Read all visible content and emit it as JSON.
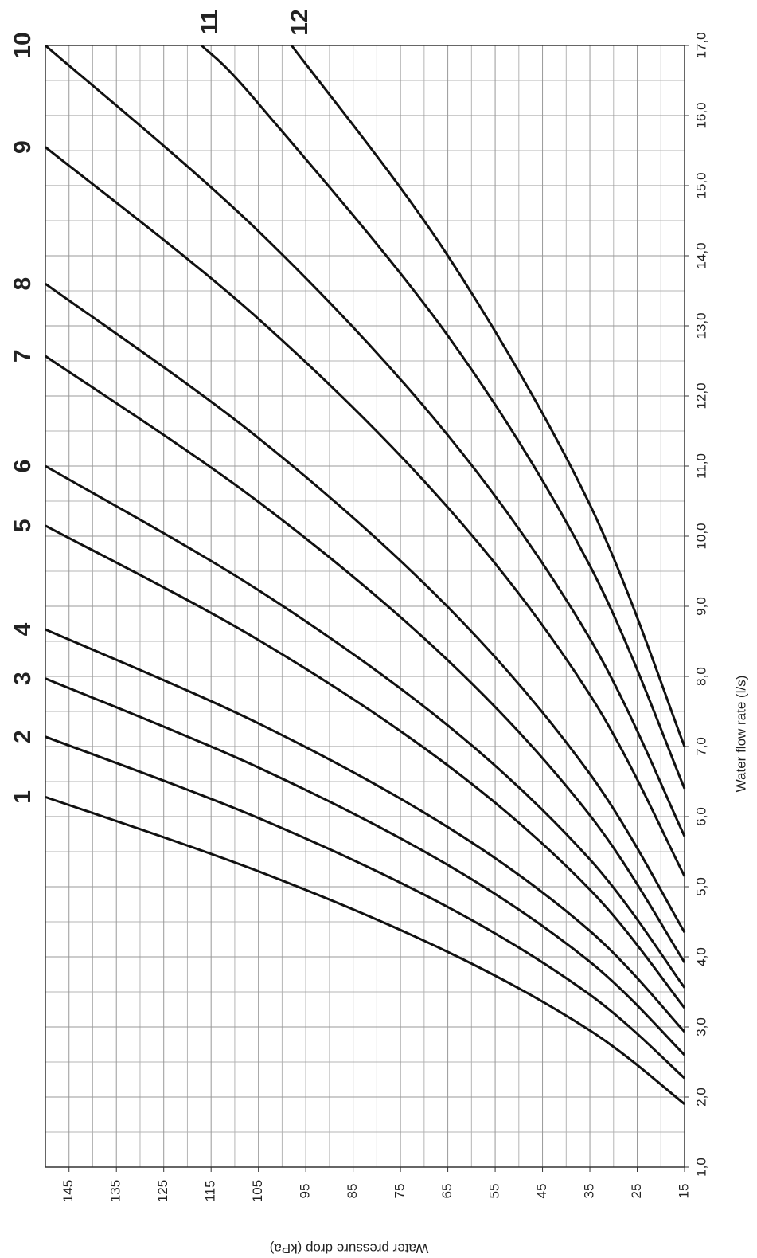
{
  "chart_data": {
    "type": "line",
    "x_label": "Water flow rate (l/s)",
    "y_label": "Water pressure drop (kPa)",
    "xlim": [
      1,
      17
    ],
    "xticks": [
      {
        "value": 1,
        "label": "1,0"
      },
      {
        "value": 2,
        "label": "2,0"
      },
      {
        "value": 3,
        "label": "3,0"
      },
      {
        "value": 4,
        "label": "4,0"
      },
      {
        "value": 5,
        "label": "5,0"
      },
      {
        "value": 6,
        "label": "6,0"
      },
      {
        "value": 7,
        "label": "7,0"
      },
      {
        "value": 8,
        "label": "8,0"
      },
      {
        "value": 9,
        "label": "9,0"
      },
      {
        "value": 10,
        "label": "10,0"
      },
      {
        "value": 11,
        "label": "11,0"
      },
      {
        "value": 12,
        "label": "12,0"
      },
      {
        "value": 13,
        "label": "13,0"
      },
      {
        "value": 14,
        "label": "14,0"
      },
      {
        "value": 15,
        "label": "15,0"
      },
      {
        "value": 16,
        "label": "16,0"
      },
      {
        "value": 17,
        "label": "17,0"
      }
    ],
    "ylim": [
      15,
      150
    ],
    "yticks": [
      15,
      25,
      35,
      45,
      55,
      65,
      75,
      85,
      95,
      105,
      115,
      125,
      135,
      145
    ],
    "grid": true,
    "series": [
      {
        "name": "1",
        "color": "#111111",
        "x": [
          1.9,
          2.95,
          4.07,
          5.22,
          6.28
        ],
        "values": [
          15,
          35,
          65,
          105,
          150
        ]
      },
      {
        "name": "2",
        "color": "#111111",
        "x": [
          2.27,
          3.46,
          4.71,
          5.98,
          7.14
        ],
        "values": [
          15,
          35,
          65,
          105,
          150
        ]
      },
      {
        "name": "3",
        "color": "#111111",
        "x": [
          2.6,
          3.93,
          5.31,
          6.7,
          7.97
        ],
        "values": [
          15,
          35,
          65,
          105,
          150
        ]
      },
      {
        "name": "4",
        "color": "#111111",
        "x": [
          2.93,
          4.37,
          5.85,
          7.33,
          8.67
        ],
        "values": [
          15,
          35,
          65,
          105,
          150
        ]
      },
      {
        "name": "5",
        "color": "#111111",
        "x": [
          3.27,
          4.96,
          6.73,
          8.52,
          10.15
        ],
        "values": [
          15,
          35,
          65,
          105,
          150
        ]
      },
      {
        "name": "6",
        "color": "#111111",
        "x": [
          3.56,
          5.39,
          7.3,
          9.23,
          11.0
        ],
        "values": [
          15,
          35,
          65,
          105,
          150
        ]
      },
      {
        "name": "7",
        "color": "#111111",
        "x": [
          3.92,
          6.02,
          8.23,
          10.49,
          12.57
        ],
        "values": [
          15,
          35,
          65,
          105,
          150
        ]
      },
      {
        "name": "8",
        "color": "#111111",
        "x": [
          4.35,
          6.61,
          8.99,
          11.4,
          13.6
        ],
        "values": [
          15,
          35,
          65,
          105,
          150
        ]
      },
      {
        "name": "9",
        "color": "#111111",
        "x": [
          5.15,
          7.74,
          10.41,
          13.1,
          15.55
        ],
        "values": [
          15,
          35,
          65,
          105,
          150
        ]
      },
      {
        "name": "10",
        "color": "#111111",
        "x": [
          5.72,
          8.54,
          11.44,
          14.35,
          17.0
        ],
        "values": [
          15,
          35,
          65,
          105,
          150
        ]
      },
      {
        "name": "11",
        "color": "#111111",
        "x": [
          6.4,
          9.58,
          12.86,
          16.17,
          17.0
        ],
        "values": [
          15,
          35,
          65,
          105,
          117
        ]
      },
      {
        "name": "12",
        "color": "#111111",
        "x": [
          7.0,
          10.45,
          14.0,
          17.0
        ],
        "values": [
          15,
          35,
          65,
          98
        ]
      }
    ]
  }
}
